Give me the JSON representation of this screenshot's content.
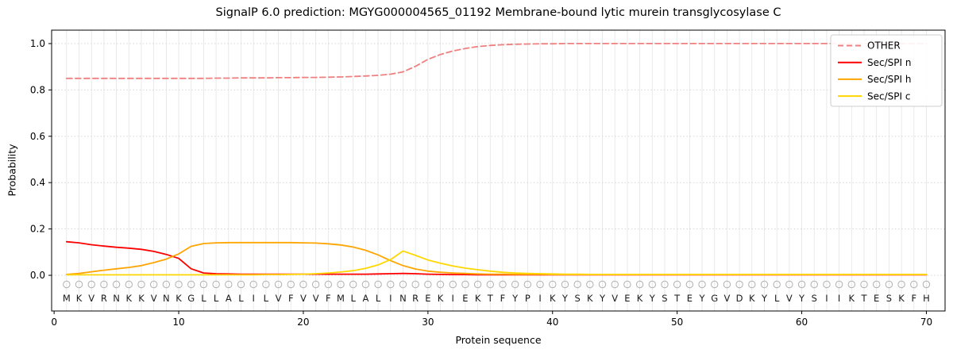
{
  "chart_data": {
    "type": "line",
    "title": "SignalP 6.0 prediction: MGYG000004565_01192 Membrane-bound lytic murein transglycosylase C",
    "xlabel": "Protein sequence",
    "ylabel": "Probability",
    "xlim": [
      -0.2,
      71.5
    ],
    "ylim": [
      -0.154,
      1.058
    ],
    "x_ticks": [
      0,
      10,
      20,
      30,
      40,
      50,
      60,
      70
    ],
    "y_ticks": [
      0.0,
      0.2,
      0.4,
      0.6,
      0.8,
      1.0
    ],
    "grid": true,
    "legend_position": "upper right",
    "positions_start": 1,
    "sequence": "MKVRNKKVNKGLLALILVFVVFMLALINREKIEKTFYPIKYSKYVEKYSTEYGVDKYLVYSIIKTESKFH",
    "marker_glyph": "O",
    "colors": {
      "other": "#f08080",
      "sec_spi_n": "#ff0000",
      "sec_spi_h": "#ffa500",
      "sec_spi_c": "#ffd700",
      "grid_vertical": "#e4e4e4",
      "grid_horizontal": "#cfcfcf",
      "marker": "#b0b0b0",
      "letters": "#1a1a1a"
    },
    "series": [
      {
        "name": "OTHER",
        "color": "#f08080",
        "dash": "7 4",
        "width": 1.8,
        "values": [
          0.85,
          0.85,
          0.85,
          0.85,
          0.85,
          0.85,
          0.85,
          0.85,
          0.85,
          0.85,
          0.85,
          0.85,
          0.851,
          0.851,
          0.852,
          0.852,
          0.852,
          0.853,
          0.853,
          0.854,
          0.854,
          0.855,
          0.856,
          0.858,
          0.86,
          0.863,
          0.868,
          0.878,
          0.902,
          0.932,
          0.953,
          0.968,
          0.979,
          0.987,
          0.992,
          0.995,
          0.997,
          0.998,
          0.999,
          0.999,
          1.0,
          1.0,
          1.0,
          1.0,
          1.0,
          1.0,
          1.0,
          1.0,
          1.0,
          1.0,
          1.0,
          1.0,
          1.0,
          1.0,
          1.0,
          1.0,
          1.0,
          1.0,
          1.0,
          1.0,
          1.0,
          1.0,
          1.0,
          1.0,
          1.0,
          1.0,
          1.0,
          1.0,
          1.0,
          1.0
        ]
      },
      {
        "name": "Sec/SPI n",
        "color": "#ff0000",
        "dash": null,
        "width": 1.8,
        "values": [
          0.145,
          0.14,
          0.132,
          0.126,
          0.121,
          0.117,
          0.112,
          0.103,
          0.09,
          0.073,
          0.028,
          0.01,
          0.007,
          0.006,
          0.005,
          0.005,
          0.005,
          0.005,
          0.005,
          0.005,
          0.005,
          0.005,
          0.005,
          0.005,
          0.005,
          0.006,
          0.007,
          0.008,
          0.007,
          0.005,
          0.004,
          0.003,
          0.003,
          0.002,
          0.002,
          0.002,
          0.002,
          0.002,
          0.002,
          0.002,
          0.002,
          0.002,
          0.002,
          0.002,
          0.002,
          0.002,
          0.002,
          0.002,
          0.002,
          0.002,
          0.002,
          0.002,
          0.002,
          0.002,
          0.002,
          0.002,
          0.002,
          0.002,
          0.002,
          0.002,
          0.002,
          0.002,
          0.002,
          0.002,
          0.002,
          0.002,
          0.002,
          0.002,
          0.002,
          0.002
        ]
      },
      {
        "name": "Sec/SPI h",
        "color": "#ffa500",
        "dash": null,
        "width": 1.8,
        "values": [
          0.004,
          0.008,
          0.015,
          0.022,
          0.028,
          0.034,
          0.042,
          0.055,
          0.07,
          0.092,
          0.125,
          0.137,
          0.14,
          0.141,
          0.141,
          0.141,
          0.141,
          0.141,
          0.141,
          0.14,
          0.139,
          0.136,
          0.131,
          0.122,
          0.108,
          0.088,
          0.063,
          0.042,
          0.027,
          0.018,
          0.013,
          0.01,
          0.008,
          0.006,
          0.005,
          0.005,
          0.004,
          0.004,
          0.004,
          0.003,
          0.003,
          0.003,
          0.003,
          0.003,
          0.003,
          0.003,
          0.003,
          0.003,
          0.003,
          0.003,
          0.003,
          0.003,
          0.003,
          0.003,
          0.003,
          0.003,
          0.003,
          0.003,
          0.003,
          0.003,
          0.003,
          0.003,
          0.003,
          0.003,
          0.003,
          0.003,
          0.003,
          0.003,
          0.003,
          0.003
        ]
      },
      {
        "name": "Sec/SPI c",
        "color": "#ffd700",
        "dash": null,
        "width": 1.8,
        "values": [
          0.002,
          0.002,
          0.002,
          0.002,
          0.002,
          0.002,
          0.002,
          0.002,
          0.002,
          0.002,
          0.002,
          0.002,
          0.002,
          0.002,
          0.002,
          0.002,
          0.003,
          0.003,
          0.004,
          0.005,
          0.007,
          0.01,
          0.014,
          0.02,
          0.03,
          0.045,
          0.068,
          0.105,
          0.086,
          0.066,
          0.052,
          0.04,
          0.031,
          0.024,
          0.018,
          0.013,
          0.01,
          0.008,
          0.007,
          0.006,
          0.005,
          0.005,
          0.004,
          0.004,
          0.004,
          0.004,
          0.004,
          0.004,
          0.004,
          0.004,
          0.004,
          0.004,
          0.004,
          0.004,
          0.004,
          0.004,
          0.004,
          0.004,
          0.004,
          0.004,
          0.004,
          0.004,
          0.004,
          0.004,
          0.004,
          0.004,
          0.004,
          0.004,
          0.004,
          0.004
        ]
      }
    ]
  }
}
